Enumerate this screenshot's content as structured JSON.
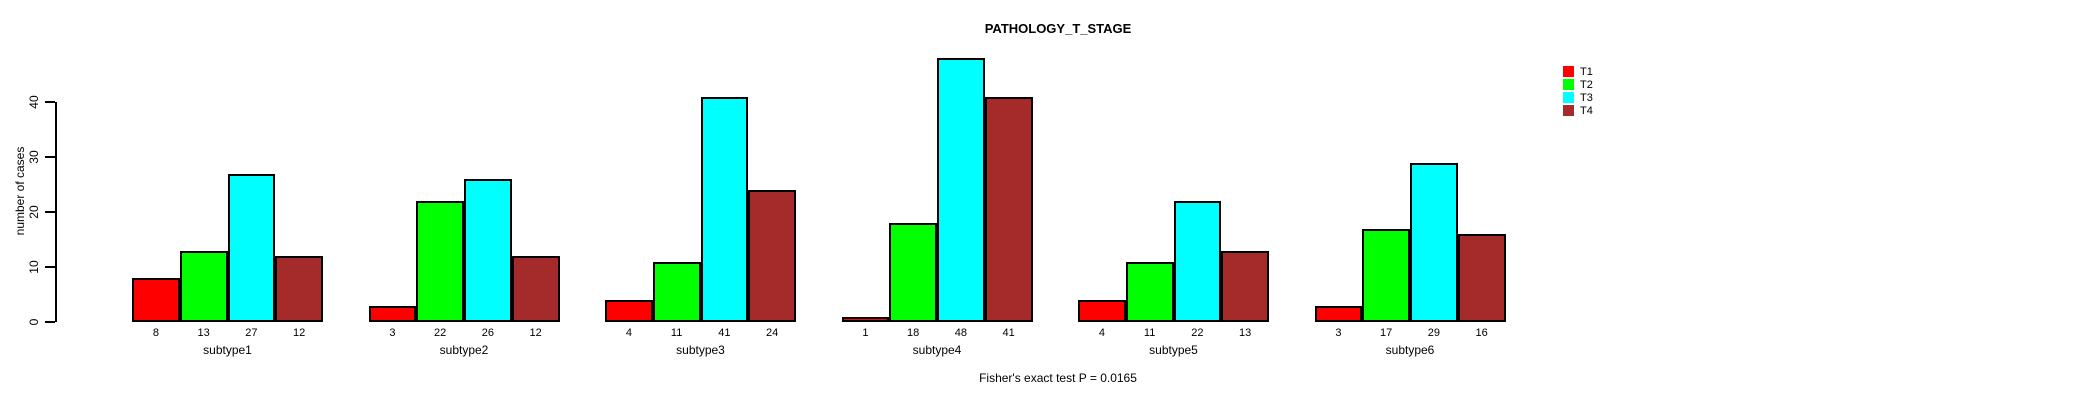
{
  "chart_data": {
    "type": "bar",
    "title": "PATHOLOGY_T_STAGE",
    "xlabel": "",
    "ylabel": "number of cases",
    "categories": [
      "subtype1",
      "subtype2",
      "subtype3",
      "subtype4",
      "subtype5",
      "subtype6"
    ],
    "series": [
      {
        "name": "T1",
        "color": "#FF0000",
        "values": [
          8,
          3,
          4,
          1,
          4,
          3
        ]
      },
      {
        "name": "T2",
        "color": "#00FF00",
        "values": [
          13,
          22,
          11,
          18,
          11,
          17
        ]
      },
      {
        "name": "T3",
        "color": "#00FFFF",
        "values": [
          27,
          26,
          41,
          48,
          22,
          29
        ]
      },
      {
        "name": "T4",
        "color": "#A52A2A",
        "values": [
          12,
          12,
          24,
          41,
          13,
          16
        ]
      }
    ],
    "ylim": [
      0,
      40
    ],
    "yticks": [
      0,
      10,
      20,
      30,
      40
    ],
    "bar_value_labels_shown": true,
    "grid": false,
    "legend_position": "top-right",
    "annotation": "Fisher's exact test P = 0.0165"
  }
}
